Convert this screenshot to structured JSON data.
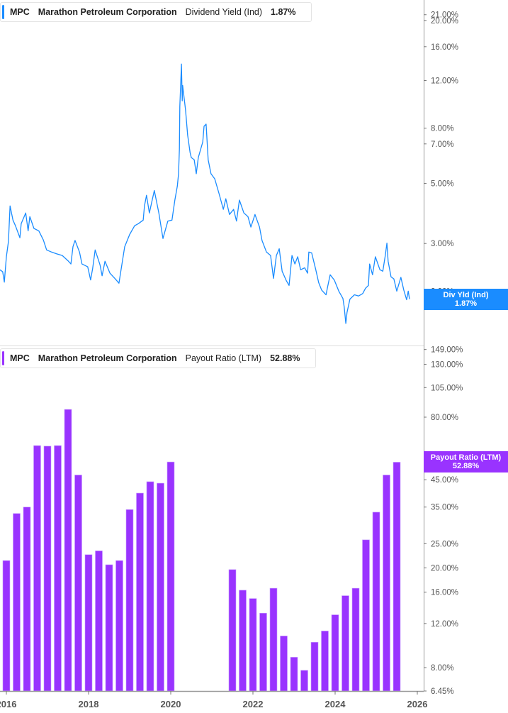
{
  "top_legend": {
    "ticker": "MPC",
    "company": "Marathon Petroleum Corporation",
    "metric": "Dividend Yield (Ind)",
    "value": "1.87%"
  },
  "bottom_legend": {
    "ticker": "MPC",
    "company": "Marathon Petroleum Corporation",
    "metric": "Payout Ratio (LTM)",
    "value": "52.88%"
  },
  "top_tag": {
    "label": "Div Yld (Ind)",
    "value": "1.87%"
  },
  "bottom_tag": {
    "label": "Payout Ratio (LTM)",
    "value": "52.88%"
  },
  "colors": {
    "yield_line": "#1a8cff",
    "payout_bar": "#9933ff",
    "axis": "#999999",
    "tick_text": "#555555"
  },
  "chart_data": [
    {
      "type": "line",
      "title": "",
      "series": [
        {
          "name": "Dividend Yield (Ind)",
          "unit": "%",
          "x": [
            2015.84,
            2015.91,
            2015.95,
            2016.0,
            2016.05,
            2016.09,
            2016.16,
            2016.22,
            2016.33,
            2016.36,
            2016.47,
            2016.53,
            2016.57,
            2016.67,
            2016.79,
            2016.9,
            2016.98,
            2017.1,
            2017.22,
            2017.36,
            2017.5,
            2017.57,
            2017.62,
            2017.67,
            2017.78,
            2017.84,
            2017.98,
            2018.05,
            2018.1,
            2018.16,
            2018.28,
            2018.33,
            2018.4,
            2018.52,
            2018.64,
            2018.74,
            2018.78,
            2018.88,
            2019.0,
            2019.12,
            2019.21,
            2019.33,
            2019.36,
            2019.41,
            2019.48,
            2019.6,
            2019.71,
            2019.81,
            2019.93,
            2020.03,
            2020.1,
            2020.16,
            2020.19,
            2020.21,
            2020.22,
            2020.26,
            2020.28,
            2020.29,
            2020.36,
            2020.41,
            2020.47,
            2020.5,
            2020.57,
            2020.62,
            2020.67,
            2020.78,
            2020.81,
            2020.86,
            2020.91,
            2020.98,
            2021.07,
            2021.17,
            2021.28,
            2021.34,
            2021.43,
            2021.53,
            2021.6,
            2021.67,
            2021.78,
            2021.88,
            2021.95,
            2022.05,
            2022.16,
            2022.22,
            2022.33,
            2022.43,
            2022.5,
            2022.57,
            2022.64,
            2022.71,
            2022.81,
            2022.88,
            2022.95,
            2023.02,
            2023.09,
            2023.16,
            2023.26,
            2023.33,
            2023.36,
            2023.43,
            2023.53,
            2023.6,
            2023.67,
            2023.78,
            2023.81,
            2023.88,
            2023.98,
            2024.09,
            2024.19,
            2024.22,
            2024.26,
            2024.29,
            2024.36,
            2024.47,
            2024.57,
            2024.67,
            2024.74,
            2024.81,
            2024.84,
            2024.91,
            2024.98,
            2025.09,
            2025.16,
            2025.22,
            2025.26,
            2025.29,
            2025.36,
            2025.43,
            2025.5,
            2025.6,
            2025.67,
            2025.74,
            2025.78,
            2025.81
          ],
          "y": [
            2.4,
            2.36,
            2.16,
            2.68,
            3.05,
            4.13,
            3.66,
            3.49,
            3.15,
            3.55,
            3.89,
            3.34,
            3.77,
            3.41,
            3.34,
            3.09,
            2.84,
            2.79,
            2.75,
            2.71,
            2.59,
            2.52,
            2.92,
            3.08,
            2.79,
            2.52,
            2.46,
            2.2,
            2.43,
            2.84,
            2.5,
            2.28,
            2.58,
            2.33,
            2.23,
            2.14,
            2.34,
            2.92,
            3.24,
            3.49,
            3.55,
            3.66,
            4.13,
            4.52,
            3.89,
            4.71,
            3.89,
            3.13,
            3.63,
            3.66,
            4.34,
            4.89,
            5.43,
            6.7,
            9.62,
            13.8,
            10.1,
            11.5,
            9.33,
            7.56,
            6.5,
            6.23,
            6.12,
            5.43,
            6.23,
            7.12,
            8.13,
            8.28,
            6.12,
            5.43,
            5.2,
            4.61,
            4.01,
            4.39,
            3.84,
            4.01,
            3.63,
            4.34,
            3.89,
            3.77,
            3.45,
            3.84,
            3.45,
            3.08,
            2.79,
            2.71,
            2.23,
            2.71,
            2.87,
            2.37,
            2.19,
            2.1,
            2.71,
            2.52,
            2.68,
            2.4,
            2.44,
            2.33,
            2.79,
            2.77,
            2.4,
            2.15,
            2.02,
            1.94,
            2.05,
            2.3,
            2.2,
            2.0,
            1.88,
            1.75,
            1.52,
            1.67,
            1.87,
            1.94,
            1.92,
            1.96,
            2.05,
            2.1,
            2.52,
            2.3,
            2.68,
            2.4,
            2.37,
            2.71,
            3.01,
            2.58,
            2.26,
            2.22,
            2.0,
            2.25,
            2.02,
            1.86,
            2.0,
            1.87
          ]
        }
      ],
      "y_scale": "log",
      "ylim": [
        1.26,
        23.8
      ],
      "xlim": [
        2015.845,
        2026.155
      ],
      "y_ticks": [
        "21.00%",
        "20.00%",
        "16.00%",
        "12.00%",
        "8.00%",
        "7.00%",
        "5.00%",
        "3.00%",
        "2.00%"
      ],
      "y_tick_values": [
        21,
        20,
        16,
        12,
        8,
        7,
        5,
        3,
        2
      ],
      "grid": false,
      "legend": "top-left"
    },
    {
      "type": "bar",
      "title": "",
      "series": [
        {
          "name": "Payout Ratio (LTM)",
          "unit": "%",
          "dates": [
            "2015-12-31",
            "2016-03-31",
            "2016-06-30",
            "2016-09-30",
            "2016-12-31",
            "2017-03-31",
            "2017-06-30",
            "2017-09-30",
            "2017-12-31",
            "2018-03-31",
            "2018-06-30",
            "2018-09-30",
            "2018-12-31",
            "2019-03-31",
            "2019-06-30",
            "2019-09-30",
            "2019-12-31",
            "2021-06-30",
            "2021-09-30",
            "2021-12-31",
            "2022-03-31",
            "2022-06-30",
            "2022-09-30",
            "2022-12-31",
            "2023-03-31",
            "2023-06-30",
            "2023-09-30",
            "2023-12-31",
            "2024-03-31",
            "2024-06-30",
            "2024-09-30",
            "2024-12-31",
            "2025-03-31",
            "2025-06-30"
          ],
          "values": [
            21.4,
            33.0,
            35.0,
            61.6,
            61.3,
            61.6,
            85.9,
            47.0,
            22.6,
            23.4,
            20.6,
            21.4,
            34.2,
            39.8,
            44.2,
            43.6,
            53.0,
            19.7,
            16.3,
            15.1,
            13.2,
            16.6,
            10.7,
            8.8,
            7.8,
            10.1,
            11.2,
            13.0,
            15.5,
            16.6,
            25.9,
            33.4,
            47.0,
            52.88
          ]
        }
      ],
      "y_scale": "log",
      "ylim": [
        6.45,
        154.6
      ],
      "xlim": [
        2015.845,
        2026.155
      ],
      "y_ticks": [
        "149.00%",
        "130.00%",
        "105.00%",
        "80.00%",
        "45.00%",
        "35.00%",
        "25.00%",
        "20.00%",
        "16.00%",
        "12.00%",
        "8.00%",
        "6.45%"
      ],
      "y_tick_values": [
        149,
        130,
        105,
        80,
        45,
        35,
        25,
        20,
        16,
        12,
        8,
        6.45
      ],
      "x_ticks": [
        "2016",
        "2018",
        "2020",
        "2022",
        "2024",
        "2026"
      ],
      "x_tick_values": [
        2016,
        2018,
        2020,
        2022,
        2024,
        2026
      ],
      "grid": false,
      "legend": "top-left"
    }
  ]
}
